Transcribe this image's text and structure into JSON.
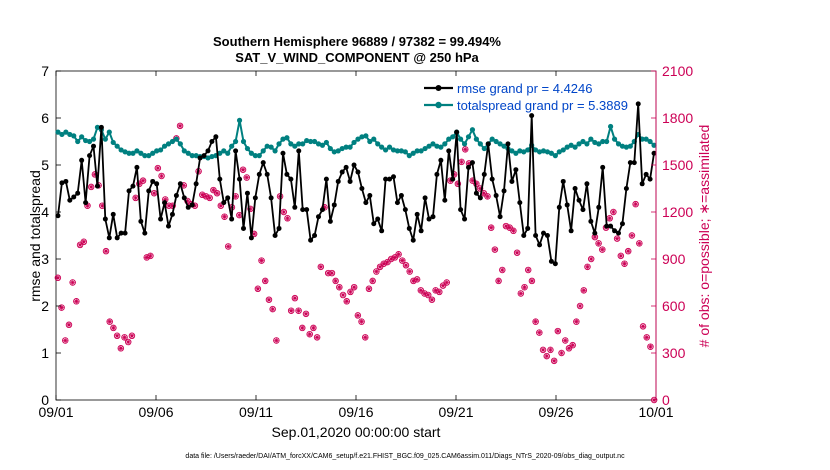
{
  "chart_data": {
    "type": "line",
    "title": "Southern Hemisphere 96889 / 97382 = 99.494%",
    "subtitle": "SAT_V_WIND_COMPONENT @ 250 hPa",
    "xlabel": "Sep.01,2020 00:00:00 start",
    "ylabel_left": "rmse and totalspread",
    "ylabel_right": "# of obs: o=possible; ∗=assimilated",
    "footnote": "data file: /Users/raeder/DAI/ATM_forcXX/CAM6_setup/f.e21.FHIST_BGC.f09_025.CAM6assim.011/Diags_NTrS_2020-09/obs_diag_output.nc",
    "xlim": [
      0,
      30
    ],
    "ylim_left": [
      0,
      7
    ],
    "ylim_right": [
      0,
      2100
    ],
    "x_ticks": [
      0,
      5,
      10,
      15,
      20,
      25,
      30
    ],
    "x_tick_labels": [
      "09/01",
      "09/06",
      "09/11",
      "09/16",
      "09/21",
      "09/26",
      "10/01"
    ],
    "y_left_ticks": [
      "0",
      "1",
      "2",
      "3",
      "4",
      "5",
      "6",
      "7"
    ],
    "y_right_ticks": [
      "0",
      "300",
      "600",
      "900",
      "1200",
      "1500",
      "1800",
      "2100"
    ],
    "colors": {
      "rmse": "#000000",
      "spread": "#008080",
      "obs": "#cc0055",
      "legend_text": "#0045c8"
    },
    "series": [
      {
        "name": "rmse grand pr = 4.4246",
        "values": [
          3.92,
          4.62,
          4.65,
          4.25,
          4.32,
          4.4,
          5.1,
          4.2,
          5.2,
          5.4,
          4.55,
          5.8,
          3.85,
          3.45,
          3.95,
          3.45,
          3.55,
          3.55,
          4.45,
          4.55,
          4.95,
          3.8,
          3.55,
          4.45,
          4.65,
          4.6,
          3.85,
          4.2,
          3.7,
          3.95,
          4.35,
          4.6,
          4.3,
          4.1,
          4.15,
          4.6,
          5.15,
          5.2,
          5.3,
          5.5,
          5.6,
          4.7,
          4.2,
          4.3,
          3.85,
          5.3,
          4.7,
          3.65,
          4.4,
          3.45,
          4.3,
          4.8,
          5.05,
          4.8,
          4.3,
          3.5,
          3.65,
          5.25,
          4.8,
          4.7,
          4.1,
          5.3,
          4.05,
          4.05,
          3.4,
          3.5,
          3.9,
          4.05,
          4.7,
          3.8,
          4.15,
          4.65,
          4.85,
          4.95,
          4.65,
          5.0,
          4.85,
          4.5,
          4.2,
          4.35,
          3.75,
          3.85,
          3.6,
          4.7,
          4.7,
          4.75,
          4.2,
          4.35,
          4.05,
          3.65,
          3.4,
          3.95,
          3.6,
          4.3,
          3.85,
          3.9,
          4.8,
          5.1,
          4.25,
          5.3,
          4.7,
          5.7,
          4.05,
          3.85,
          4.95,
          5.05,
          4.4,
          4.3,
          4.8,
          5.45,
          4.7,
          4.35,
          3.9,
          4.45,
          5.45,
          4.65,
          4.9,
          4.2,
          3.5,
          3.65,
          6.05,
          3.5,
          3.3,
          3.55,
          3.5,
          2.95,
          2.9,
          4.1,
          4.65,
          4.15,
          3.6,
          4.5,
          4.25,
          4.05,
          4.6,
          3.8,
          3.55,
          4.1,
          4.95,
          3.7,
          3.7,
          3.6,
          3.55,
          3.75,
          4.5,
          5.05,
          5.05,
          6.3,
          4.6,
          4.8,
          4.7,
          5.25
        ]
      },
      {
        "name": "totalspread grand pr = 5.3889",
        "values": [
          5.7,
          5.65,
          5.7,
          5.65,
          5.62,
          5.5,
          5.6,
          5.52,
          5.5,
          5.55,
          5.8,
          5.75,
          5.55,
          5.7,
          5.48,
          5.4,
          5.32,
          5.28,
          5.25,
          5.25,
          5.3,
          5.25,
          5.2,
          5.2,
          5.25,
          5.3,
          5.32,
          5.4,
          5.45,
          5.5,
          5.55,
          5.45,
          5.3,
          5.25,
          5.2,
          5.2,
          5.18,
          5.18,
          5.15,
          5.18,
          5.2,
          5.25,
          5.3,
          5.25,
          5.4,
          5.5,
          5.95,
          5.5,
          5.35,
          5.25,
          5.2,
          5.2,
          5.3,
          5.4,
          5.38,
          5.3,
          5.45,
          5.55,
          5.58,
          5.45,
          5.4,
          5.45,
          5.45,
          5.52,
          5.5,
          5.5,
          5.45,
          5.42,
          5.48,
          5.35,
          5.28,
          5.3,
          5.35,
          5.38,
          5.38,
          5.48,
          5.55,
          5.6,
          5.62,
          5.5,
          5.55,
          5.45,
          5.38,
          5.32,
          5.38,
          5.32,
          5.3,
          5.3,
          5.28,
          5.2,
          5.25,
          5.3,
          5.3,
          5.35,
          5.4,
          5.45,
          5.4,
          5.38,
          5.45,
          5.55,
          5.6,
          5.7,
          5.55,
          5.45,
          5.6,
          5.75,
          5.55,
          5.45,
          5.35,
          5.45,
          5.55,
          5.5,
          5.45,
          5.4,
          5.35,
          5.3,
          5.25,
          5.3,
          5.28,
          5.32,
          5.42,
          5.32,
          5.28,
          5.3,
          5.28,
          5.25,
          5.2,
          5.28,
          5.32,
          5.38,
          5.42,
          5.38,
          5.45,
          5.5,
          5.45,
          5.55,
          5.48,
          5.45,
          5.5,
          5.5,
          5.82,
          5.55,
          5.45,
          5.4,
          5.38,
          5.4,
          5.5,
          5.65,
          5.55,
          5.55,
          5.5,
          5.42
        ]
      }
    ],
    "obs_count": [
      780,
      590,
      380,
      480,
      750,
      630,
      990,
      1010,
      1240,
      1360,
      1440,
      1370,
      1240,
      950,
      500,
      460,
      410,
      330,
      400,
      370,
      410,
      1290,
      1380,
      1400,
      910,
      920,
      1320,
      1480,
      1430,
      1280,
      1240,
      1240,
      1670,
      1750,
      1370,
      1270,
      1250,
      1240,
      1460,
      1310,
      1300,
      1290,
      1340,
      1320,
      1240,
      1170,
      980,
      1230,
      1300,
      1180,
      1470,
      1420,
      1220,
      1060,
      710,
      890,
      760,
      640,
      580,
      380,
      1300,
      1200,
      1160,
      570,
      650,
      570,
      460,
      550,
      420,
      460,
      400,
      850,
      1230,
      810,
      810,
      760,
      720,
      670,
      630,
      690,
      720,
      540,
      500,
      400,
      710,
      760,
      820,
      850,
      870,
      880,
      900,
      910,
      930,
      890,
      860,
      820,
      760,
      770,
      700,
      680,
      670,
      640,
      700,
      690,
      730,
      750,
      1400,
      1440,
      1380,
      1520,
      1600,
      1510,
      1400,
      1380,
      1350,
      1320,
      1300,
      1100,
      960,
      760,
      830,
      1110,
      1100,
      1080,
      940,
      680,
      720,
      830,
      760,
      500,
      430,
      320,
      280,
      320,
      250,
      440,
      300,
      380,
      330,
      350,
      500,
      600,
      700,
      850,
      900,
      1040,
      1000,
      960,
      1100,
      1160,
      1200,
      1030,
      920,
      870,
      950,
      1050,
      1250,
      1000,
      470,
      400,
      340,
      0
    ]
  },
  "legend": {
    "rmse_label": "rmse grand pr = 4.4246",
    "spread_label": "totalspread grand pr = 5.3889"
  }
}
